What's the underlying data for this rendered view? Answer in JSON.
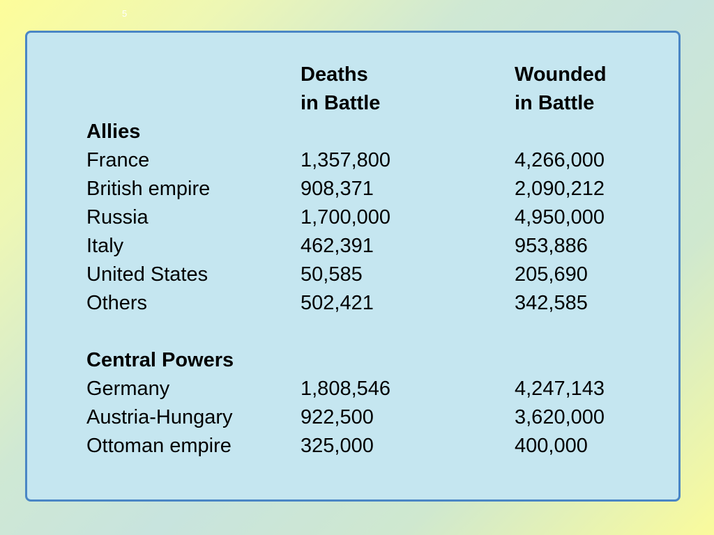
{
  "slide_number": "5",
  "headers": {
    "deaths_line1": "Deaths",
    "deaths_line2": "in Battle",
    "wounded_line1": "Wounded",
    "wounded_line2": "in Battle"
  },
  "groups": [
    {
      "name": "Allies",
      "rows": [
        {
          "country": "France",
          "deaths": "1,357,800",
          "wounded": "4,266,000"
        },
        {
          "country": "British empire",
          "deaths": "908,371",
          "wounded": "2,090,212"
        },
        {
          "country": "Russia",
          "deaths": "1,700,000",
          "wounded": "4,950,000"
        },
        {
          "country": "Italy",
          "deaths": "462,391",
          "wounded": "953,886"
        },
        {
          "country": "United States",
          "deaths": "50,585",
          "wounded": "205,690"
        },
        {
          "country": "Others",
          "deaths": "502,421",
          "wounded": "342,585"
        }
      ]
    },
    {
      "name": "Central Powers",
      "rows": [
        {
          "country": "Germany",
          "deaths": "1,808,546",
          "wounded": "4,247,143"
        },
        {
          "country": "Austria-Hungary",
          "deaths": "922,500",
          "wounded": "3,620,000"
        },
        {
          "country": "Ottoman empire",
          "deaths": "325,000",
          "wounded": "400,000"
        }
      ]
    }
  ],
  "colors": {
    "panel_background": "#c5e6f0",
    "panel_border": "#4a86c5"
  }
}
